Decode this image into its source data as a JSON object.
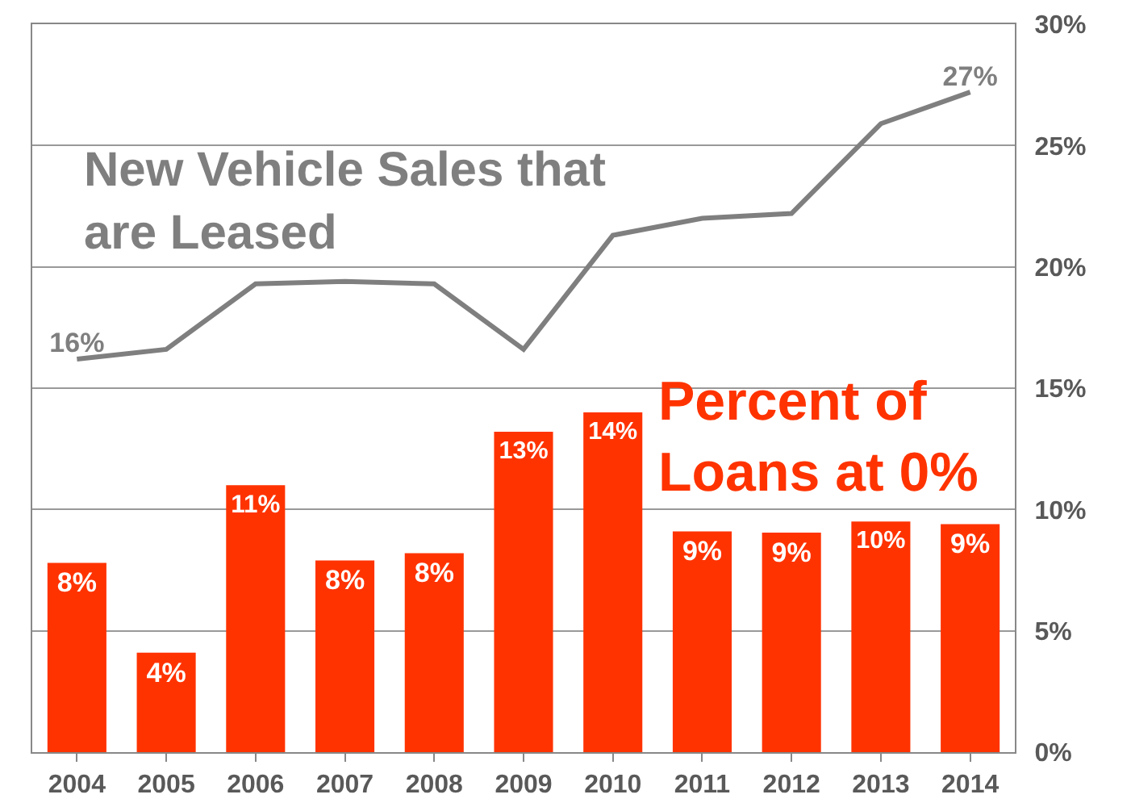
{
  "chart_data": {
    "type": "bar",
    "categories": [
      "2004",
      "2005",
      "2006",
      "2007",
      "2008",
      "2009",
      "2010",
      "2011",
      "2012",
      "2013",
      "2014"
    ],
    "series": [
      {
        "name": "Percent of Loans at 0%",
        "color": "#ff3300",
        "values": [
          7.8,
          4.1,
          11.0,
          7.9,
          8.2,
          13.2,
          14.0,
          9.1,
          9.05,
          9.5,
          9.4
        ],
        "value_labels": [
          "8%",
          "4%",
          "11%",
          "8%",
          "8%",
          "13%",
          "14%",
          "9%",
          "9%",
          "10%",
          "9%"
        ]
      },
      {
        "name": "New Vehicle Sales that are Leased",
        "type": "line",
        "color": "#7f7f7f",
        "values": [
          16.2,
          16.6,
          19.3,
          19.4,
          19.3,
          16.6,
          21.3,
          22.0,
          22.2,
          25.9,
          27.2
        ],
        "value_labels": [
          "16%",
          null,
          null,
          null,
          null,
          null,
          null,
          null,
          null,
          null,
          "27%"
        ]
      }
    ],
    "ylim": [
      0,
      30
    ],
    "yticks": [
      {
        "value": 0,
        "label": "0%"
      },
      {
        "value": 5,
        "label": "5%"
      },
      {
        "value": 10,
        "label": "10%"
      },
      {
        "value": 15,
        "label": "15%"
      },
      {
        "value": 20,
        "label": "20%"
      },
      {
        "value": 25,
        "label": "25%"
      },
      {
        "value": 30,
        "label": "30%"
      }
    ],
    "grid": "y",
    "legend": false,
    "marker": "none",
    "line_style": "solid"
  }
}
